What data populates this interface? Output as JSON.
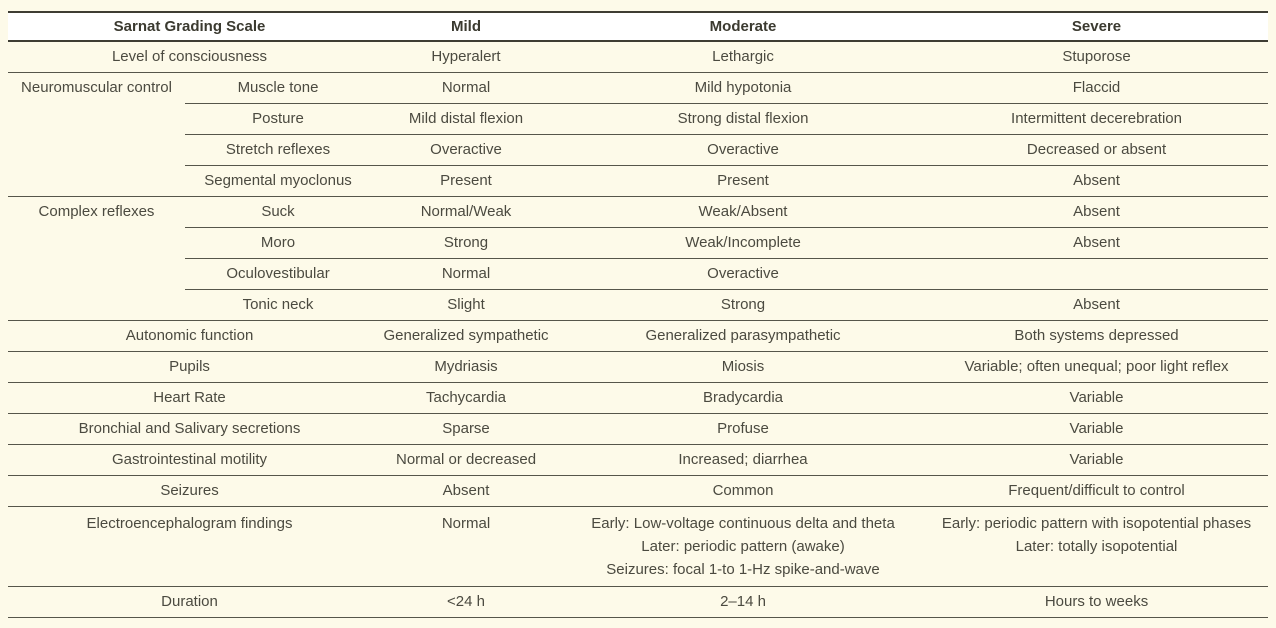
{
  "colors": {
    "page_background": "#fdfae9",
    "header_background": "#ffffff",
    "heavy_border": "#3e3d33",
    "row_border": "#56554a",
    "text": "#4b4a40",
    "header_text": "#3b3a30"
  },
  "headers": {
    "scale": "Sarnat Grading Scale",
    "mild": "Mild",
    "moderate": "Moderate",
    "severe": "Severe"
  },
  "rows": [
    {
      "label": "Level of consciousness",
      "mild": "Hyperalert",
      "moderate": "Lethargic",
      "severe": "Stuporose"
    },
    {
      "group": "Neuromuscular control",
      "sub": "Muscle tone",
      "mild": "Normal",
      "moderate": "Mild hypotonia",
      "severe": "Flaccid"
    },
    {
      "sub": "Posture",
      "mild": "Mild distal flexion",
      "moderate": "Strong distal flexion",
      "severe": "Intermittent decerebration"
    },
    {
      "sub": "Stretch reflexes",
      "mild": "Overactive",
      "moderate": "Overactive",
      "severe": "Decreased or absent"
    },
    {
      "sub": "Segmental myoclonus",
      "mild": "Present",
      "moderate": "Present",
      "severe": "Absent"
    },
    {
      "group": "Complex reflexes",
      "sub": "Suck",
      "mild": "Normal/Weak",
      "moderate": "Weak/Absent",
      "severe": "Absent"
    },
    {
      "sub": "Moro",
      "mild": "Strong",
      "moderate": "Weak/Incomplete",
      "severe": "Absent"
    },
    {
      "sub": "Oculovestibular",
      "mild": "Normal",
      "moderate": "Overactive",
      "severe": ""
    },
    {
      "sub": "Tonic neck",
      "mild": "Slight",
      "moderate": "Strong",
      "severe": "Absent"
    },
    {
      "label": "Autonomic function",
      "mild": "Generalized sympathetic",
      "moderate": "Generalized parasympathetic",
      "severe": "Both systems depressed"
    },
    {
      "label": "Pupils",
      "mild": "Mydriasis",
      "moderate": "Miosis",
      "severe": "Variable; often unequal; poor light reflex"
    },
    {
      "label": "Heart Rate",
      "mild": "Tachycardia",
      "moderate": "Bradycardia",
      "severe": "Variable"
    },
    {
      "label": "Bronchial and Salivary secretions",
      "mild": "Sparse",
      "moderate": "Profuse",
      "severe": "Variable"
    },
    {
      "label": "Gastrointestinal motility",
      "mild": "Normal or decreased",
      "moderate": "Increased; diarrhea",
      "severe": "Variable"
    },
    {
      "label": "Seizures",
      "mild": "Absent",
      "moderate": "Common",
      "severe": "Frequent/difficult to control"
    },
    {
      "label": "Electroencephalogram findings",
      "mild": "Normal",
      "moderate_lines": [
        "Early: Low-voltage continuous delta and theta",
        "Later: periodic pattern (awake)",
        "Seizures: focal 1-to 1-Hz spike-and-wave"
      ],
      "severe_lines": [
        "Early: periodic pattern with isopotential phases",
        "Later: totally isopotential"
      ]
    },
    {
      "label": "Duration",
      "mild": "<24 h",
      "moderate": "2–14 h",
      "severe": "Hours to weeks"
    }
  ]
}
